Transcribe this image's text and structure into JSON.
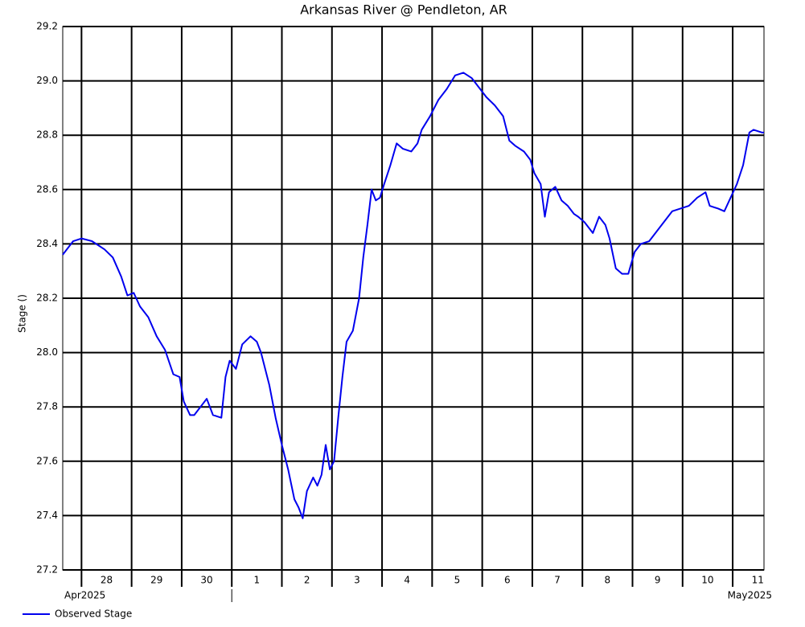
{
  "chart_data": {
    "type": "line",
    "title": "Arkansas River @ Pendleton, AR",
    "y_label": "Stage ()",
    "x_group_labels": [
      "Apr2025",
      "May2025"
    ],
    "grid": true,
    "legend": "bottom-left",
    "xlim": [
      "2025-04-27T15:00",
      "2025-05-11T15:00"
    ],
    "xticks": [
      {
        "value": "2025-04-28T00:00",
        "label": "28"
      },
      {
        "value": "2025-04-29T00:00",
        "label": "29"
      },
      {
        "value": "2025-04-30T00:00",
        "label": "30"
      },
      {
        "value": "2025-05-01T00:00",
        "label": "1"
      },
      {
        "value": "2025-05-02T00:00",
        "label": "2"
      },
      {
        "value": "2025-05-03T00:00",
        "label": "3"
      },
      {
        "value": "2025-05-04T00:00",
        "label": "4"
      },
      {
        "value": "2025-05-05T00:00",
        "label": "5"
      },
      {
        "value": "2025-05-06T00:00",
        "label": "6"
      },
      {
        "value": "2025-05-07T00:00",
        "label": "7"
      },
      {
        "value": "2025-05-08T00:00",
        "label": "8"
      },
      {
        "value": "2025-05-09T00:00",
        "label": "9"
      },
      {
        "value": "2025-05-10T00:00",
        "label": "10"
      },
      {
        "value": "2025-05-11T00:00",
        "label": "11"
      }
    ],
    "ylim": [
      27.2,
      29.2
    ],
    "yticks": [
      27.2,
      27.4,
      27.6,
      27.8,
      {
        "value": 28,
        "label": "28.0"
      },
      28.2,
      28.4,
      28.6,
      28.8,
      {
        "value": 29,
        "label": "29.0"
      },
      29.2
    ],
    "x": [
      "2025-04-27T15:00",
      "2025-04-27T20:00",
      "2025-04-28T00:00",
      "2025-04-28T05:00",
      "2025-04-28T11:00",
      "2025-04-28T15:00",
      "2025-04-28T19:00",
      "2025-04-28T22:00",
      "2025-04-29T01:00",
      "2025-04-29T04:00",
      "2025-04-29T08:00",
      "2025-04-29T12:00",
      "2025-04-29T16:00",
      "2025-04-29T20:00",
      "2025-04-29T23:00",
      "2025-04-30T01:00",
      "2025-04-30T04:00",
      "2025-04-30T06:00",
      "2025-04-30T09:00",
      "2025-04-30T12:00",
      "2025-04-30T15:00",
      "2025-04-30T19:00",
      "2025-04-30T21:00",
      "2025-04-30T23:00",
      "2025-05-01T02:00",
      "2025-05-01T05:00",
      "2025-05-01T09:00",
      "2025-05-01T12:00",
      "2025-05-01T14:00",
      "2025-05-01T18:00",
      "2025-05-01T21:00",
      "2025-05-02T00:00",
      "2025-05-02T03:00",
      "2025-05-02T06:00",
      "2025-05-02T08:00",
      "2025-05-02T10:00",
      "2025-05-02T12:00",
      "2025-05-02T15:00",
      "2025-05-02T17:00",
      "2025-05-02T19:00",
      "2025-05-02T21:00",
      "2025-05-02T23:00",
      "2025-05-03T01:00",
      "2025-05-03T03:00",
      "2025-05-03T05:00",
      "2025-05-03T07:00",
      "2025-05-03T10:00",
      "2025-05-03T13:00",
      "2025-05-03T15:00",
      "2025-05-03T17:00",
      "2025-05-03T19:00",
      "2025-05-03T21:00",
      "2025-05-03T23:00",
      "2025-05-04T01:00",
      "2025-05-04T04:00",
      "2025-05-04T07:00",
      "2025-05-04T10:00",
      "2025-05-04T14:00",
      "2025-05-04T17:00",
      "2025-05-04T19:00",
      "2025-05-04T23:00",
      "2025-05-05T03:00",
      "2025-05-05T07:00",
      "2025-05-05T11:00",
      "2025-05-05T15:00",
      "2025-05-05T19:00",
      "2025-05-05T23:00",
      "2025-05-06T02:00",
      "2025-05-06T06:00",
      "2025-05-06T10:00",
      "2025-05-06T13:00",
      "2025-05-06T16:00",
      "2025-05-06T20:00",
      "2025-05-06T23:00",
      "2025-05-07T01:00",
      "2025-05-07T04:00",
      "2025-05-07T06:00",
      "2025-05-07T08:00",
      "2025-05-07T11:00",
      "2025-05-07T14:00",
      "2025-05-07T17:00",
      "2025-05-07T20:00",
      "2025-05-07T22:00",
      "2025-05-08T01:00",
      "2025-05-08T05:00",
      "2025-05-08T08:00",
      "2025-05-08T11:00",
      "2025-05-08T13:00",
      "2025-05-08T16:00",
      "2025-05-08T19:00",
      "2025-05-08T22:00",
      "2025-05-09T01:00",
      "2025-05-09T04:00",
      "2025-05-09T08:00",
      "2025-05-09T11:00",
      "2025-05-09T15:00",
      "2025-05-09T19:00",
      "2025-05-09T23:00",
      "2025-05-10T03:00",
      "2025-05-10T07:00",
      "2025-05-10T11:00",
      "2025-05-10T13:00",
      "2025-05-10T17:00",
      "2025-05-10T20:00",
      "2025-05-10T23:00",
      "2025-05-11T02:00",
      "2025-05-11T05:00",
      "2025-05-11T08:00",
      "2025-05-11T10:00",
      "2025-05-11T14:00",
      "2025-05-11T15:00"
    ],
    "series": [
      {
        "name": "Observed Stage",
        "color": "#0000ee",
        "values": [
          28.36,
          28.41,
          28.42,
          28.41,
          28.38,
          28.35,
          28.28,
          28.21,
          28.22,
          28.17,
          28.13,
          28.06,
          28.01,
          27.92,
          27.91,
          27.82,
          27.77,
          27.77,
          27.8,
          27.83,
          27.77,
          27.76,
          27.91,
          27.97,
          27.94,
          28.03,
          28.06,
          28.04,
          28.0,
          27.88,
          27.76,
          27.66,
          27.57,
          27.46,
          27.43,
          27.39,
          27.49,
          27.54,
          27.51,
          27.55,
          27.66,
          27.57,
          27.6,
          27.76,
          27.91,
          28.04,
          28.08,
          28.2,
          28.35,
          28.47,
          28.6,
          28.56,
          28.57,
          28.62,
          28.69,
          28.77,
          28.75,
          28.74,
          28.77,
          28.82,
          28.87,
          28.93,
          28.97,
          29.02,
          29.03,
          29.01,
          28.97,
          28.94,
          28.91,
          28.87,
          28.78,
          28.76,
          28.74,
          28.71,
          28.66,
          28.62,
          28.5,
          28.59,
          28.61,
          28.56,
          28.54,
          28.51,
          28.5,
          28.48,
          28.44,
          28.5,
          28.47,
          28.42,
          28.31,
          28.29,
          28.29,
          28.37,
          28.4,
          28.41,
          28.44,
          28.48,
          28.52,
          28.53,
          28.54,
          28.57,
          28.59,
          28.54,
          28.53,
          28.52,
          28.57,
          28.62,
          28.69,
          28.81,
          28.82,
          28.81,
          28.81
        ]
      }
    ]
  }
}
